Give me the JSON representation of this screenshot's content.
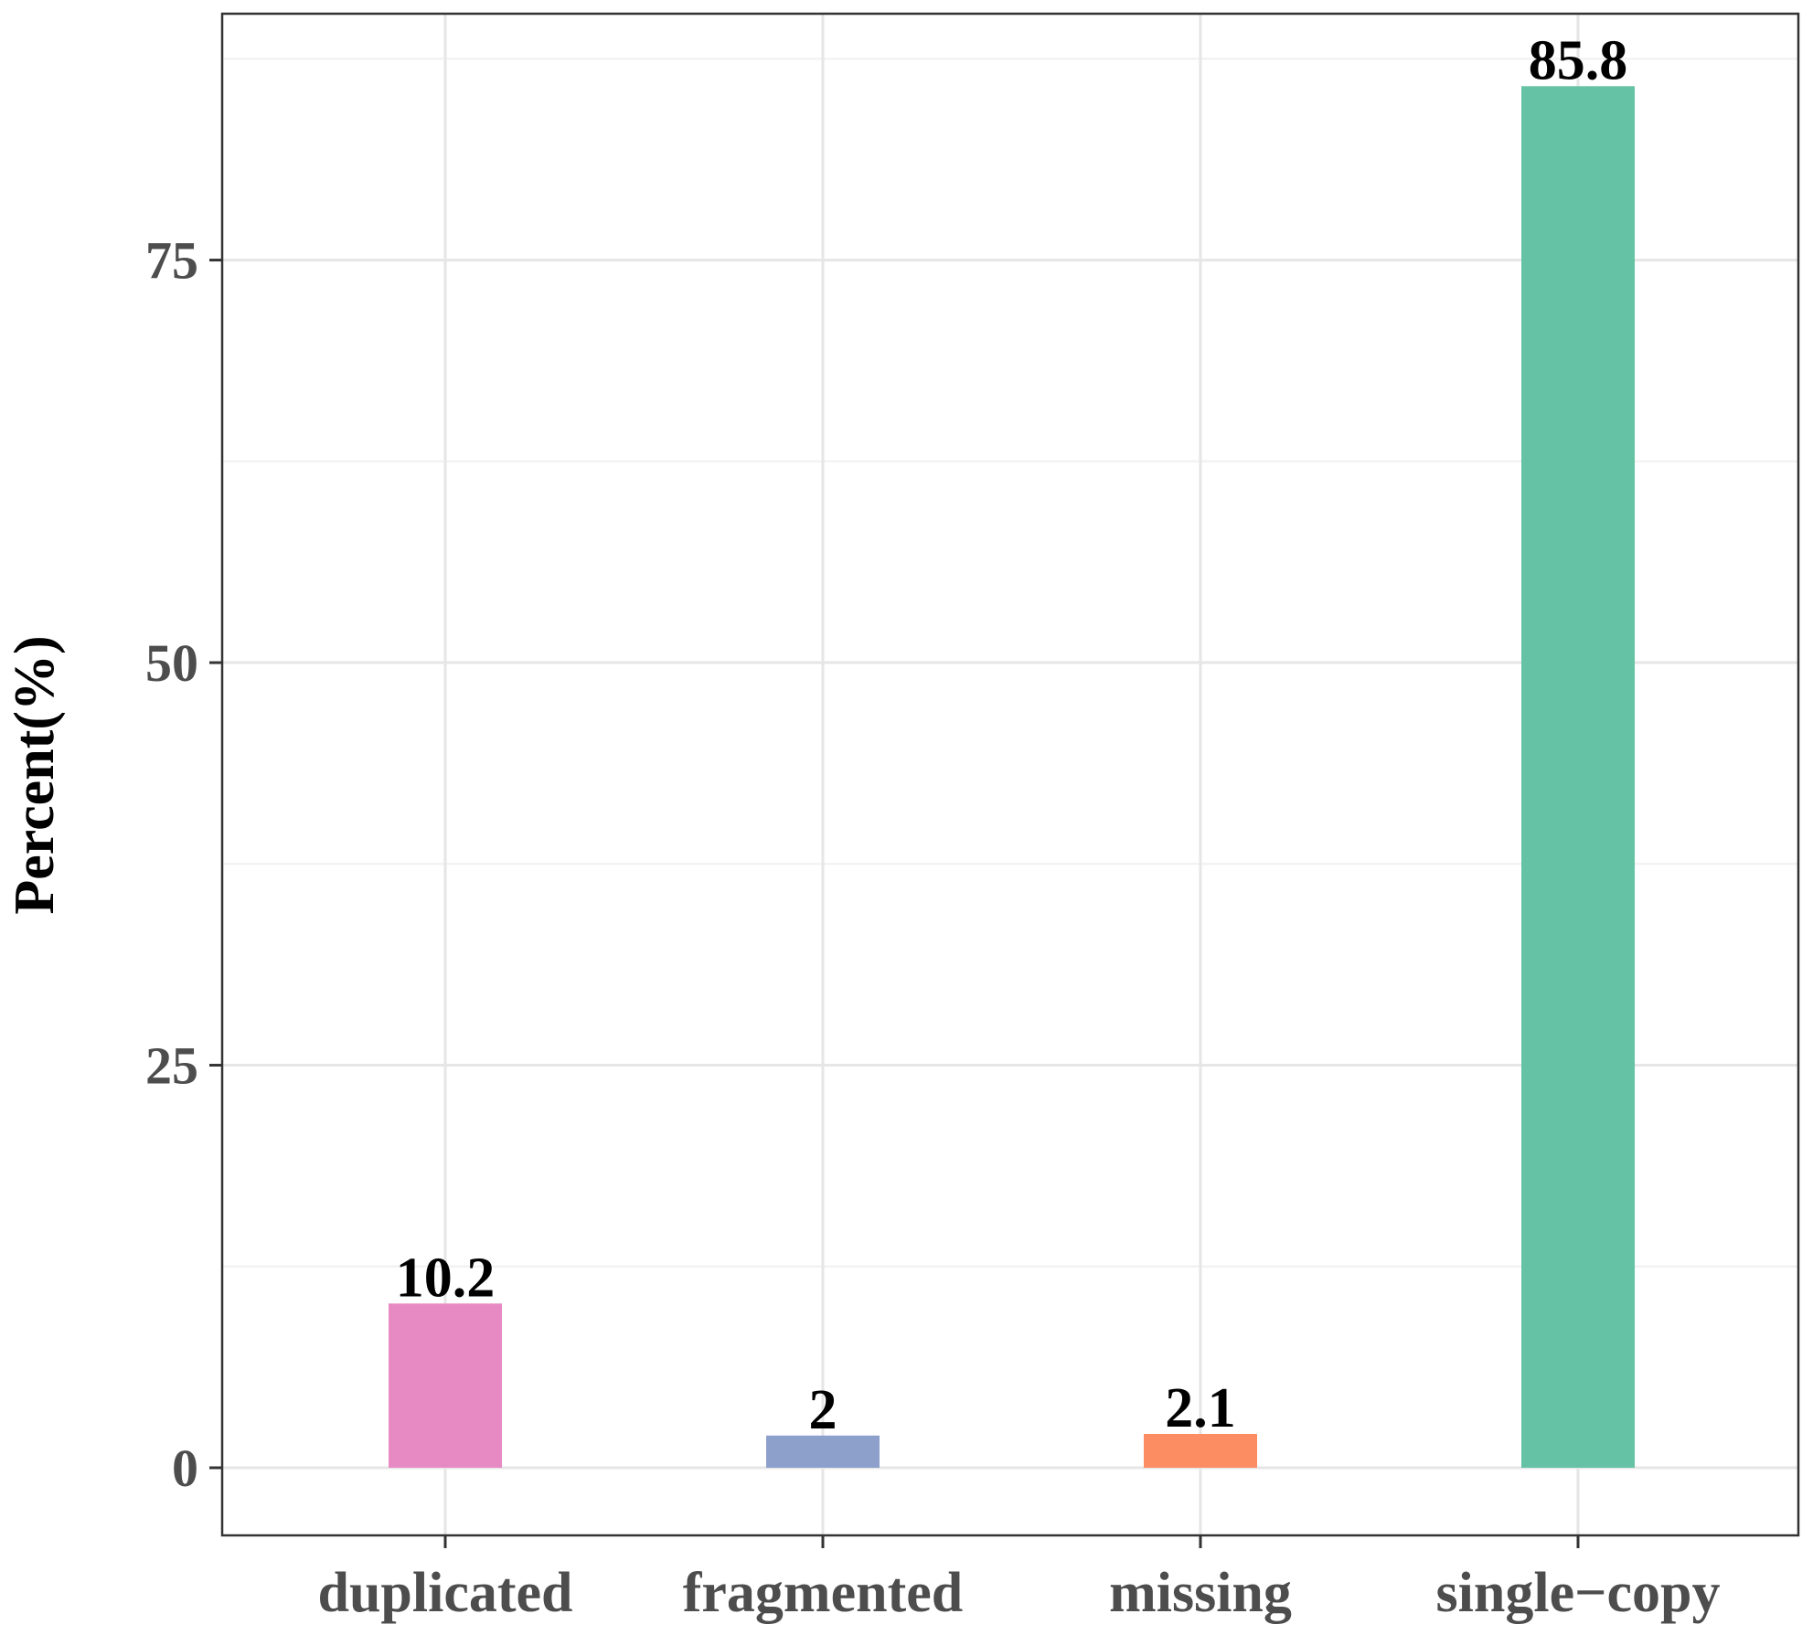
{
  "chart_data": {
    "type": "bar",
    "categories": [
      "duplicated",
      "fragmented",
      "missing",
      "single−copy"
    ],
    "values": [
      10.2,
      2,
      2.1,
      85.8
    ],
    "data_labels": [
      "10.2",
      "2",
      "2.1",
      "85.8"
    ],
    "colors": [
      "#E78AC3",
      "#8DA0CB",
      "#FC8D62",
      "#66C2A5"
    ],
    "title": "",
    "xlabel": "",
    "ylabel": "Percent(%)",
    "ylim": [
      -4.2,
      90.3
    ],
    "yticks": [
      0,
      25,
      50,
      75
    ],
    "ytick_labels": [
      "0",
      "25",
      "50",
      "75"
    ],
    "grid": true,
    "legend": "none"
  }
}
